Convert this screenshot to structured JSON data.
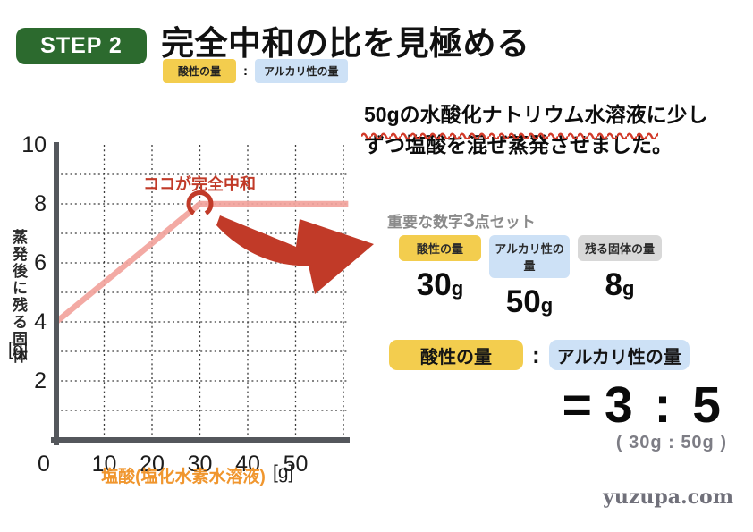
{
  "step_badge": {
    "label": "STEP 2"
  },
  "title": "完全中和の比を見極める",
  "header_ratio": {
    "acid_label": "酸性の量",
    "colon": ":",
    "alkali_label": "アルカリ性の量"
  },
  "chart_data": {
    "type": "line",
    "xlabel": "塩酸(塩化水素水溶液)",
    "xlabel_unit": "[g]",
    "ylabel": "蒸発後に残る固体",
    "ylabel_unit": "[g]",
    "xlim": [
      0,
      60
    ],
    "ylim": [
      0,
      10
    ],
    "xticks": [
      0,
      10,
      20,
      30,
      40,
      50
    ],
    "yticks": [
      2,
      4,
      6,
      8,
      10
    ],
    "grid_x": [
      10,
      20,
      30,
      40,
      50,
      60
    ],
    "grid_y": [
      1,
      2,
      3,
      4,
      5,
      6,
      7,
      8,
      9
    ],
    "grid": "dotted",
    "series": [
      {
        "name": "蒸発後に残る固体",
        "color": "#f2a39c",
        "points": [
          [
            0,
            4
          ],
          [
            30,
            8
          ],
          [
            61,
            8
          ]
        ]
      }
    ],
    "annotation": {
      "text": "ココが完全中和",
      "x": 30,
      "y": 8,
      "color": "#c13a28"
    }
  },
  "problem_text": {
    "line1": "50gの水酸化ナトリウム水溶液に少し",
    "line2": "ずつ塩酸を混ぜ蒸発させました。"
  },
  "key_numbers": {
    "heading_pre": "重要な数字",
    "heading_num": "3",
    "heading_post": "点セット",
    "items": [
      {
        "label": "酸性の量",
        "value": "30",
        "unit": "g",
        "color": "#f3cd4e"
      },
      {
        "label": "アルカリ性の量",
        "value": "50",
        "unit": "g",
        "color": "#cde1f6"
      },
      {
        "label": "残る固体の量",
        "value": "8",
        "unit": "g",
        "color": "#d8d8d8"
      }
    ]
  },
  "ratio_section": {
    "acid_label": "酸性の量",
    "colon": ":",
    "alkali_label": "アルカリ性の量",
    "equals": "=",
    "ratio": "3 : 5",
    "detail": "( 30g : 50g )"
  },
  "watermark": "yuzupa.com",
  "colors": {
    "step_green": "#2c6a2e",
    "accent_red": "#c13a28",
    "line_pink": "#f2a39c",
    "axis_orange": "#f0962e",
    "badge_yellow": "#f3cd4e",
    "badge_blue": "#cde1f6",
    "badge_gray": "#d8d8d8"
  }
}
